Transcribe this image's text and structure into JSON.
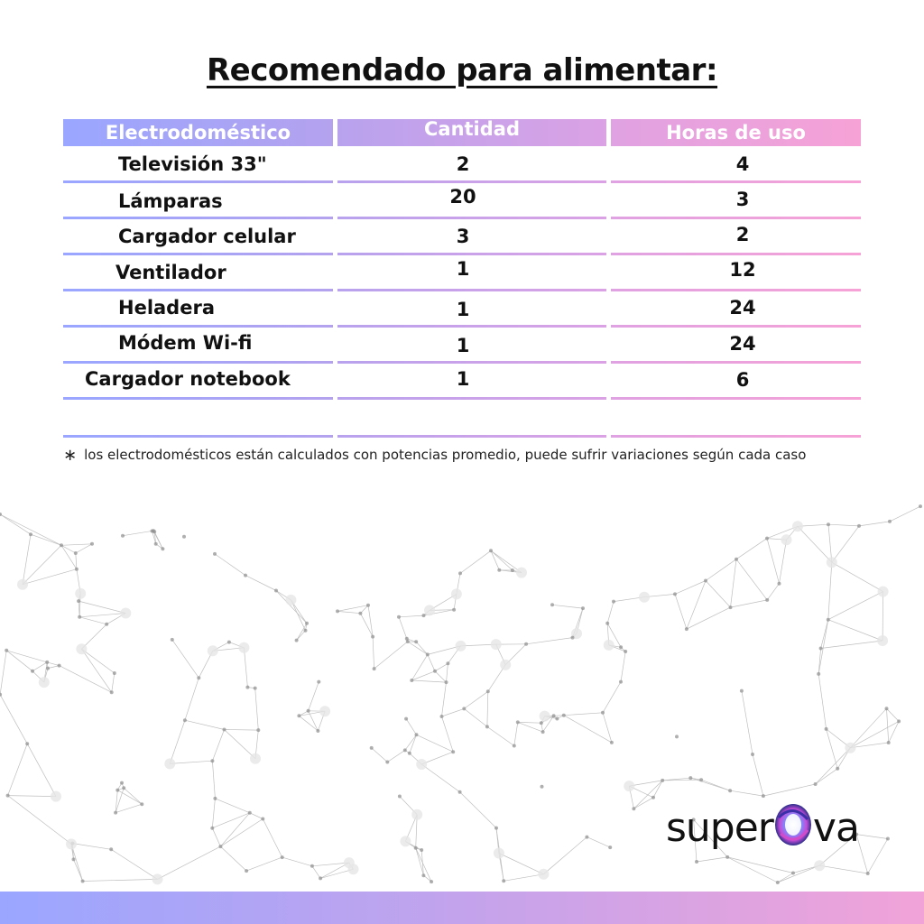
{
  "title": "Recomendado para alimentar:",
  "table": {
    "headers": [
      "Electrodoméstico",
      "Cantidad",
      "Horas de uso"
    ],
    "rows": [
      {
        "name": "Televisión 33\"",
        "cantidad": "2",
        "horas": "4"
      },
      {
        "name": "Lámparas",
        "cantidad": "20",
        "horas": "3"
      },
      {
        "name": "Cargador celular",
        "cantidad": "3",
        "horas": "2"
      },
      {
        "name": "Ventilador",
        "cantidad": "1",
        "horas": "12"
      },
      {
        "name": "Heladera",
        "cantidad": "1",
        "horas": "24"
      },
      {
        "name": "Módem Wi-fi",
        "cantidad": "1",
        "horas": "24"
      },
      {
        "name": "Cargador notebook",
        "cantidad": "1",
        "horas": "6"
      }
    ]
  },
  "note": {
    "symbol": "∗",
    "text": "los electrodomésticos están calculados con potencias promedio, puede sufrir variaciones según cada caso"
  },
  "logo": {
    "before": "super",
    "after": "va"
  },
  "colors": {
    "gradient_start": "#9aa6ff",
    "gradient_mid": "#c3a3ec",
    "gradient_end": "#f1a3d8"
  }
}
